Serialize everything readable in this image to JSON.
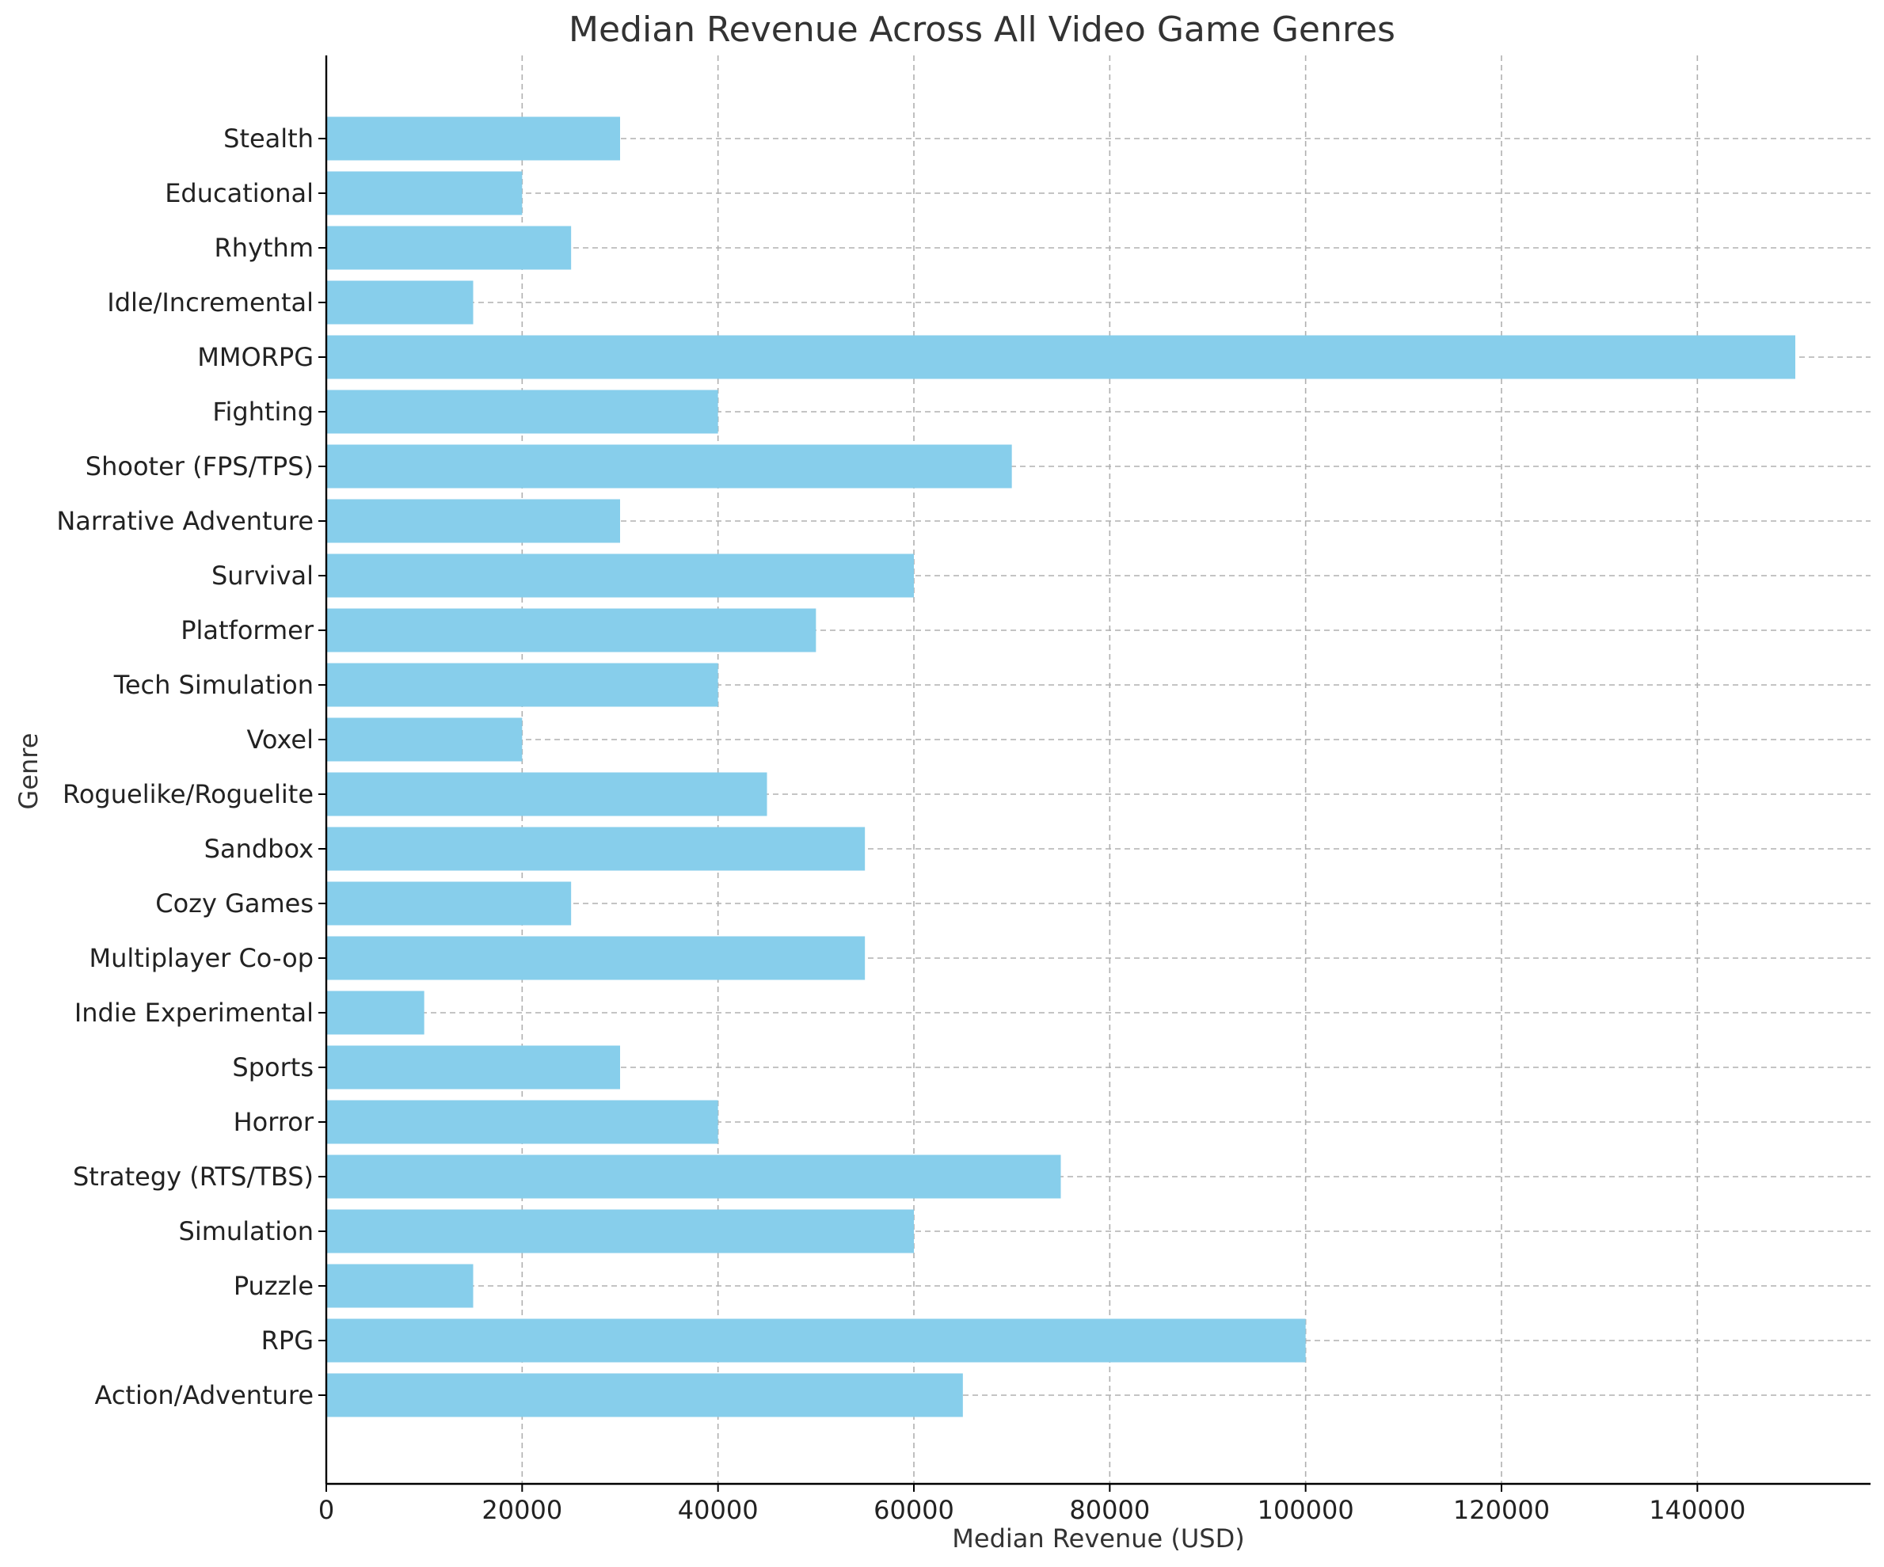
{
  "chart_data": {
    "type": "bar",
    "orientation": "horizontal",
    "title": "Median Revenue Across All Video Game Genres",
    "xlabel": "Median Revenue (USD)",
    "ylabel": "Genre",
    "categories": [
      "Action/Adventure",
      "RPG",
      "Puzzle",
      "Simulation",
      "Strategy (RTS/TBS)",
      "Horror",
      "Sports",
      "Indie Experimental",
      "Multiplayer Co-op",
      "Cozy Games",
      "Sandbox",
      "Roguelike/Roguelite",
      "Voxel",
      "Tech Simulation",
      "Platformer",
      "Survival",
      "Narrative Adventure",
      "Shooter (FPS/TPS)",
      "Fighting",
      "MMORPG",
      "Idle/Incremental",
      "Rhythm",
      "Educational",
      "Stealth"
    ],
    "values": [
      65000,
      100000,
      15000,
      60000,
      75000,
      40000,
      30000,
      10000,
      55000,
      25000,
      55000,
      45000,
      20000,
      40000,
      50000,
      60000,
      30000,
      70000,
      40000,
      150000,
      15000,
      25000,
      20000,
      30000
    ],
    "xlim": [
      0,
      157500
    ],
    "xticks": [
      0,
      20000,
      40000,
      60000,
      80000,
      100000,
      120000,
      140000
    ],
    "grid": true,
    "bar_color": "#87ceeb"
  }
}
